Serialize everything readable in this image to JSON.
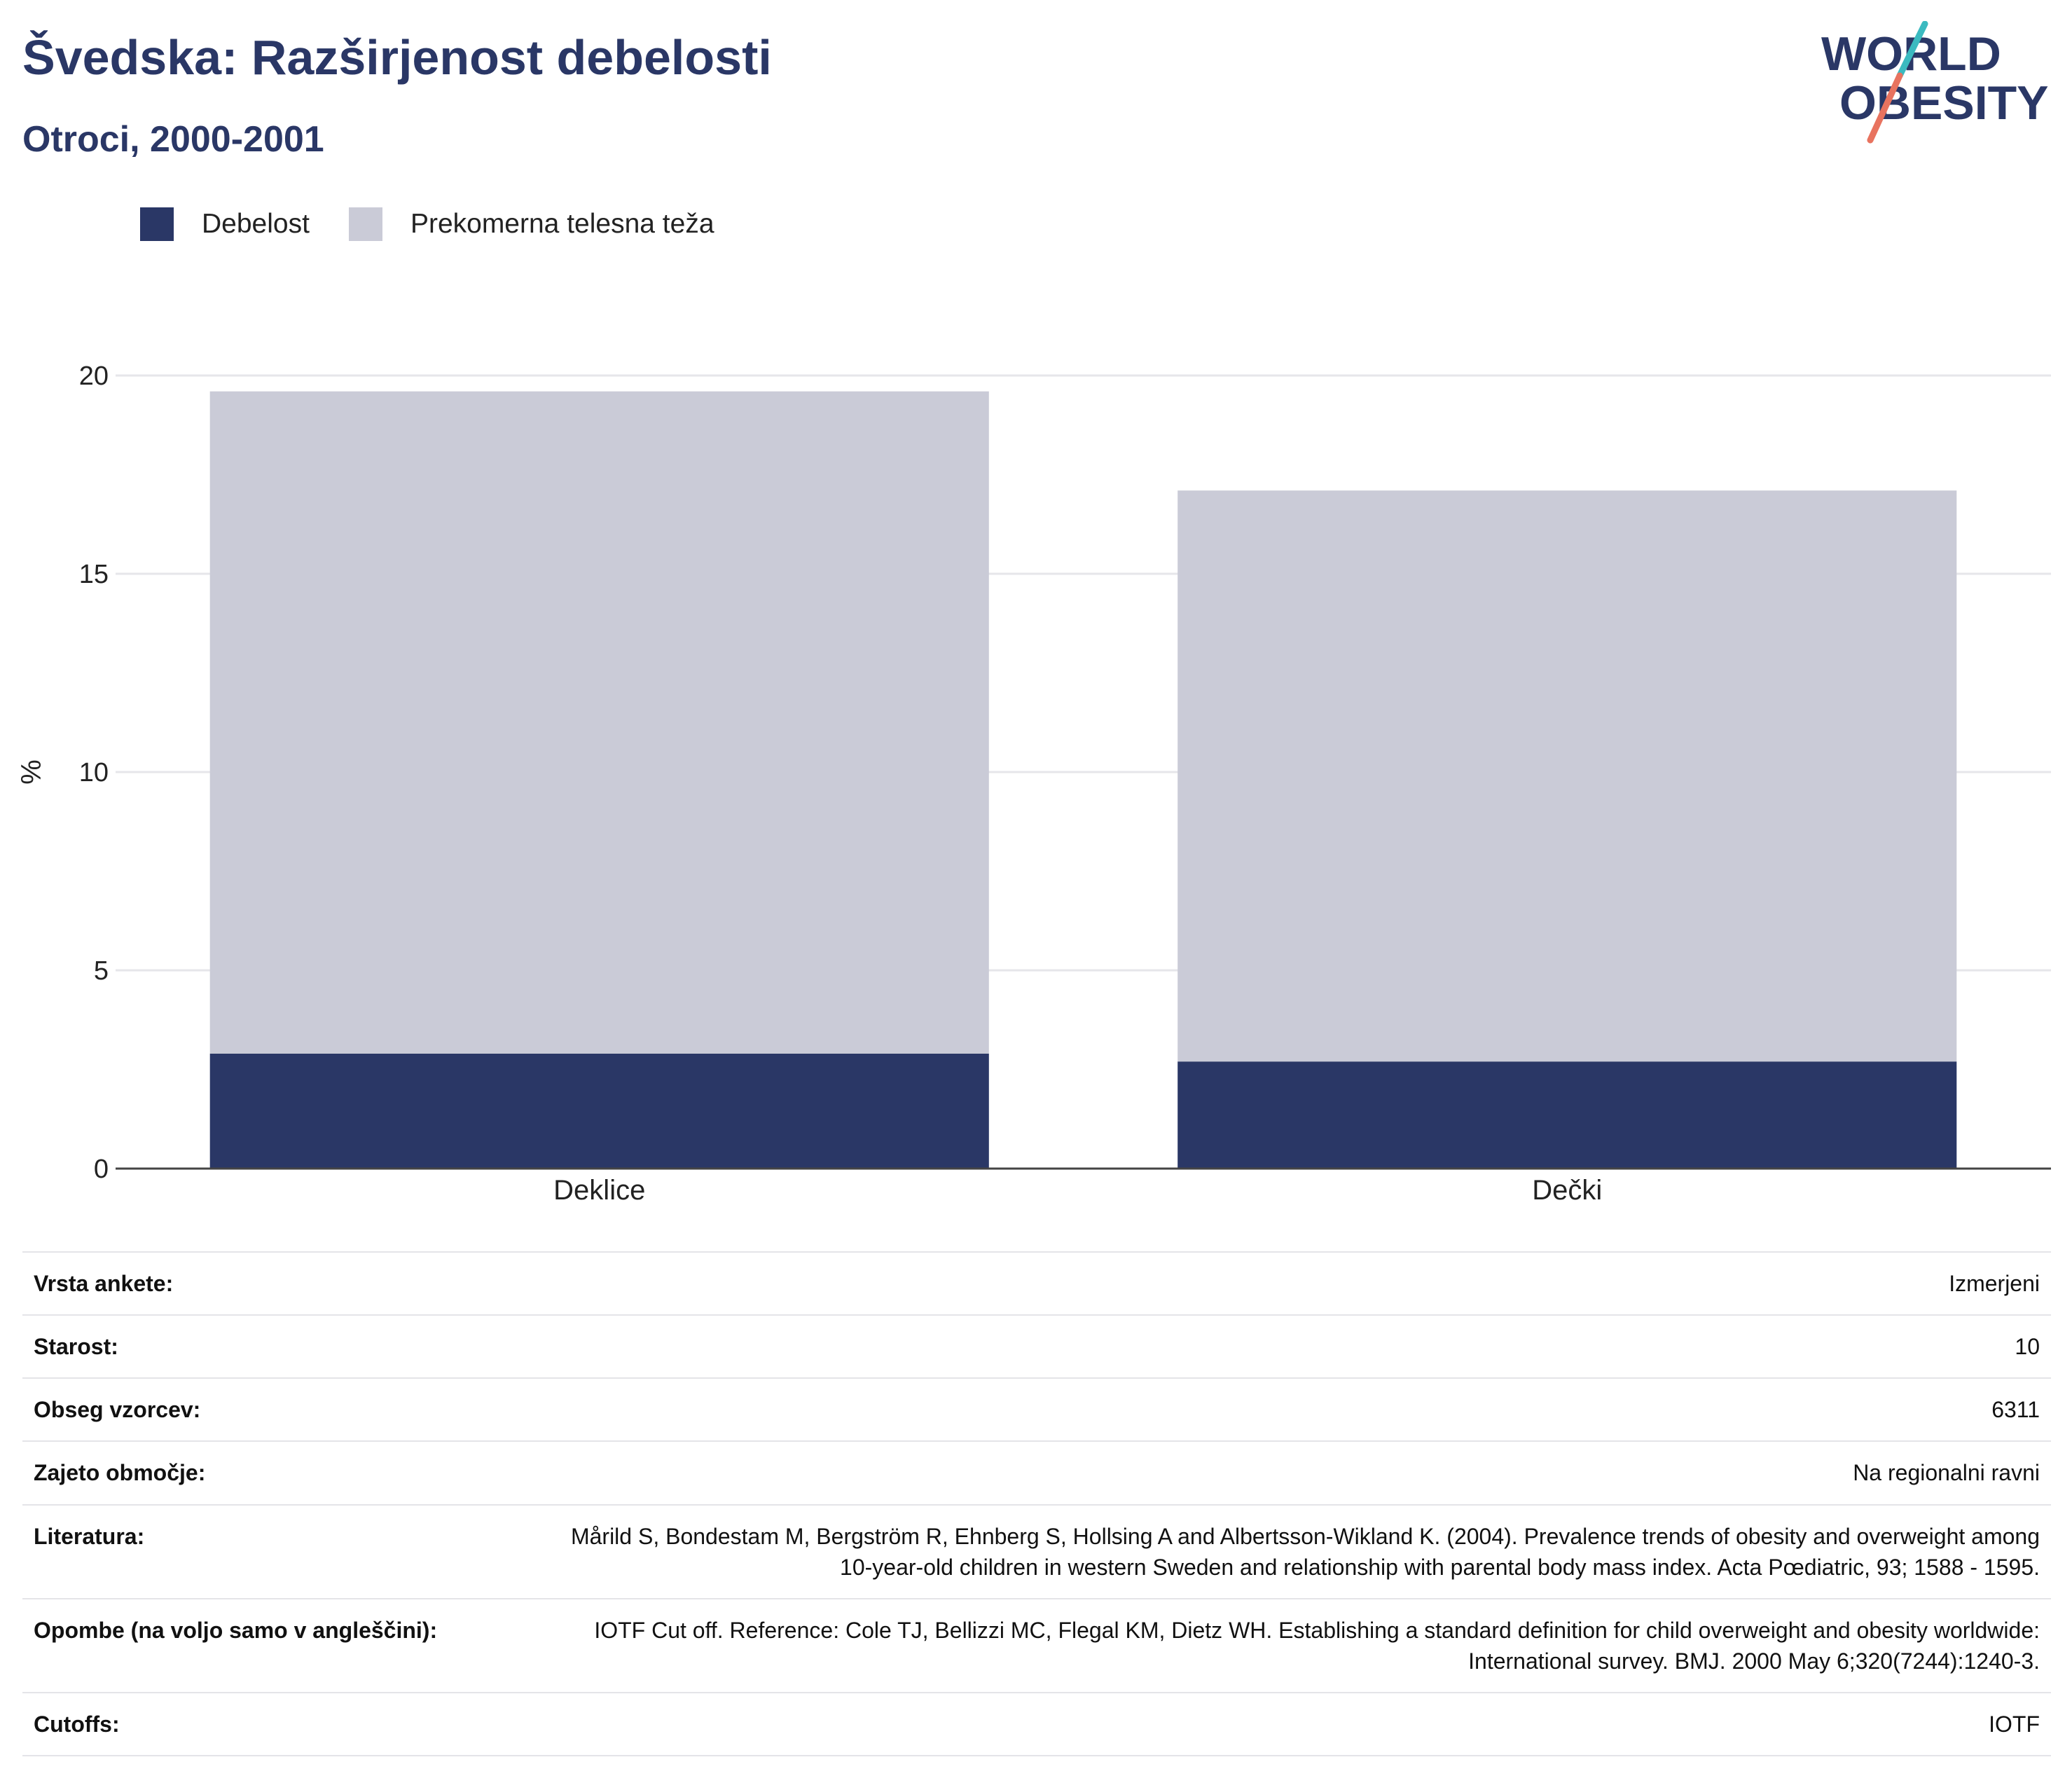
{
  "header": {
    "title": "Švedska: Razširjenost debelosti",
    "subtitle": "Otroci, 2000-2001"
  },
  "logo": {
    "line1": "WORLD",
    "line2": "OBESITY",
    "colors": {
      "text": "#2a3766",
      "slash_top": "#3bbac0",
      "slash_bottom": "#e8735f"
    }
  },
  "legend": [
    {
      "label": "Debelost",
      "color": "#2a3766"
    },
    {
      "label": "Prekomerna telesna teža",
      "color": "#cacbd7"
    }
  ],
  "chart_data": {
    "type": "bar",
    "stacked": true,
    "categories": [
      "Deklice",
      "Dečki"
    ],
    "series": [
      {
        "name": "Debelost",
        "values": [
          2.9,
          2.7
        ],
        "color": "#2a3766"
      },
      {
        "name": "Prekomerna telesna teža",
        "values": [
          16.7,
          14.4
        ],
        "color": "#cacbd7"
      }
    ],
    "ylabel": "%",
    "xlabel": "",
    "ylim": [
      0,
      20
    ],
    "yticks": [
      0,
      5,
      10,
      15,
      20
    ],
    "grid": true,
    "legend_position": "top-left"
  },
  "info": [
    {
      "label": "Vrsta ankete:",
      "value": "Izmerjeni"
    },
    {
      "label": "Starost:",
      "value": "10"
    },
    {
      "label": "Obseg vzorcev:",
      "value": "6311"
    },
    {
      "label": "Zajeto območje:",
      "value": "Na regionalni ravni"
    },
    {
      "label": "Literatura:",
      "value": "Mårild S, Bondestam M, Bergström R, Ehnberg S, Hollsing A and Albertsson-Wikland K. (2004). Prevalence trends of obesity and overweight among 10-year-old children in western Sweden and relationship with parental body mass index. Acta Pœdiatric, 93; 1588 - 1595."
    },
    {
      "label": "Opombe (na voljo samo v angleščini):",
      "value": "IOTF Cut off. Reference: Cole TJ, Bellizzi MC, Flegal KM, Dietz WH. Establishing a standard definition for child overweight and obesity worldwide: International survey. BMJ. 2000 May 6;320(7244):1240-3."
    },
    {
      "label": "Cutoffs:",
      "value": "IOTF"
    }
  ]
}
